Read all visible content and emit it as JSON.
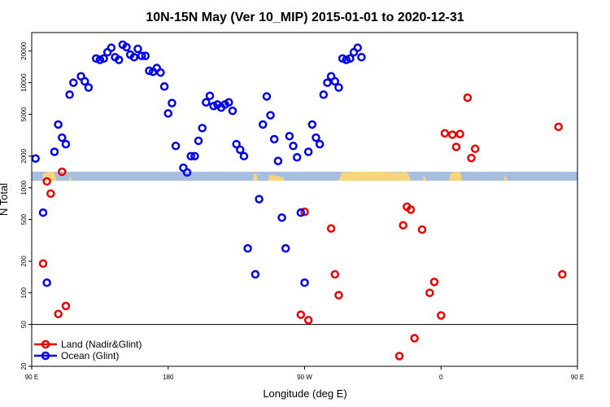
{
  "chart_data": {
    "type": "scatter",
    "title": "10N-15N May (Ver 10_MIP)   2015-01-01 to 2020-12-31",
    "xlabel": "Longitude (deg E)",
    "ylabel": "N Total",
    "xlim": [
      90,
      450
    ],
    "ylim": [
      20,
      30000
    ],
    "yscale": "log",
    "x_ticks": [
      {
        "value": 90,
        "label": "90 E"
      },
      {
        "value": 180,
        "label": "180"
      },
      {
        "value": 270,
        "label": "90 W"
      },
      {
        "value": 360,
        "label": "0"
      },
      {
        "value": 450,
        "label": "90 E"
      },
      {
        "value": 540,
        "label": "180"
      }
    ],
    "y_ticks": [
      20,
      50,
      100,
      200,
      500,
      1000,
      2000,
      5000,
      10000,
      20000
    ],
    "legend_position": "bottom-left",
    "series": [
      {
        "name": "Land (Nadir&Glint)",
        "color": "#ee0000",
        "points": [
          [
            97.5,
            190
          ],
          [
            100,
            1150
          ],
          [
            102.5,
            880
          ],
          [
            107.5,
            63
          ],
          [
            110,
            1420
          ],
          [
            112.5,
            75
          ],
          [
            267.5,
            62
          ],
          [
            270,
            590
          ],
          [
            272.5,
            55
          ],
          [
            287.5,
            410
          ],
          [
            290,
            150
          ],
          [
            292.5,
            95
          ],
          [
            332.5,
            25
          ],
          [
            335,
            440
          ],
          [
            337.5,
            660
          ],
          [
            340,
            620
          ],
          [
            342.5,
            37
          ],
          [
            347.5,
            400
          ],
          [
            352.5,
            100
          ],
          [
            355.5,
            127
          ],
          [
            360,
            61
          ],
          [
            362.5,
            3300
          ],
          [
            367.5,
            3200
          ],
          [
            370,
            2450
          ],
          [
            372.5,
            3250
          ],
          [
            377.5,
            7200
          ],
          [
            380,
            1920
          ],
          [
            382.5,
            2350
          ],
          [
            437.5,
            3800
          ],
          [
            440,
            150
          ],
          [
            452.5,
            190
          ],
          [
            455,
            1150
          ],
          [
            457.5,
            880
          ],
          [
            462.5,
            63
          ],
          [
            465,
            1420
          ],
          [
            467.5,
            75
          ]
        ]
      },
      {
        "name": "Ocean (Glint)",
        "color": "#0000ee",
        "points": [
          [
            92.5,
            1900
          ],
          [
            97.5,
            580
          ],
          [
            100,
            125
          ],
          [
            105,
            2200
          ],
          [
            107.5,
            4000
          ],
          [
            110,
            3000
          ],
          [
            112.5,
            2600
          ],
          [
            115,
            7700
          ],
          [
            117.5,
            10000
          ],
          [
            122.5,
            11500
          ],
          [
            125,
            10300
          ],
          [
            127.5,
            9000
          ],
          [
            132.5,
            17000
          ],
          [
            135,
            16500
          ],
          [
            137.5,
            17000
          ],
          [
            140,
            19500
          ],
          [
            142.5,
            21500
          ],
          [
            145,
            17500
          ],
          [
            147.5,
            16500
          ],
          [
            150,
            23000
          ],
          [
            152.5,
            21800
          ],
          [
            155,
            18500
          ],
          [
            157.5,
            17500
          ],
          [
            160,
            21000
          ],
          [
            162.5,
            18000
          ],
          [
            165,
            18000
          ],
          [
            167.5,
            13000
          ],
          [
            170,
            12700
          ],
          [
            172.5,
            13800
          ],
          [
            175,
            12500
          ],
          [
            177.5,
            9200
          ],
          [
            180,
            5100
          ],
          [
            182.5,
            6400
          ],
          [
            185,
            2500
          ],
          [
            190,
            1550
          ],
          [
            192.5,
            1400
          ],
          [
            195,
            2000
          ],
          [
            197.5,
            2000
          ],
          [
            200,
            2800
          ],
          [
            202.5,
            3700
          ],
          [
            205,
            6500
          ],
          [
            207.5,
            7500
          ],
          [
            210,
            6000
          ],
          [
            212.5,
            6200
          ],
          [
            215,
            5800
          ],
          [
            217.5,
            6200
          ],
          [
            220,
            6500
          ],
          [
            222.5,
            5400
          ],
          [
            225,
            2600
          ],
          [
            227.5,
            2300
          ],
          [
            230,
            2000
          ],
          [
            232.5,
            265
          ],
          [
            237.5,
            150
          ],
          [
            240,
            780
          ],
          [
            242.5,
            4000
          ],
          [
            245,
            7400
          ],
          [
            247.5,
            4900
          ],
          [
            250,
            2900
          ],
          [
            252.5,
            1800
          ],
          [
            255,
            520
          ],
          [
            257.5,
            265
          ],
          [
            260,
            3100
          ],
          [
            262.5,
            2500
          ],
          [
            265,
            1950
          ],
          [
            267.5,
            580
          ],
          [
            270,
            125
          ],
          [
            272.5,
            2200
          ],
          [
            275,
            4000
          ],
          [
            277.5,
            3000
          ],
          [
            280,
            2600
          ],
          [
            282.5,
            7700
          ],
          [
            285,
            10000
          ],
          [
            287.5,
            11500
          ],
          [
            290,
            10300
          ],
          [
            292.5,
            9000
          ],
          [
            295,
            17000
          ],
          [
            297.5,
            16500
          ],
          [
            300,
            17000
          ],
          [
            302.5,
            19500
          ],
          [
            305,
            21500
          ],
          [
            307.5,
            17500
          ]
        ]
      }
    ]
  }
}
